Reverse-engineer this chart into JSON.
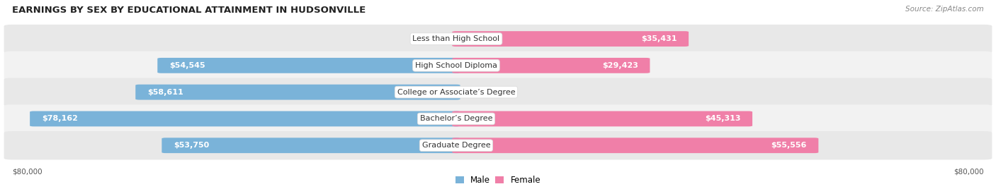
{
  "title": "EARNINGS BY SEX BY EDUCATIONAL ATTAINMENT IN HUDSONVILLE",
  "source": "Source: ZipAtlas.com",
  "categories": [
    "Less than High School",
    "High School Diploma",
    "College or Associate’s Degree",
    "Bachelor’s Degree",
    "Graduate Degree"
  ],
  "male_values": [
    0,
    54545,
    58611,
    78162,
    53750
  ],
  "female_values": [
    35431,
    29423,
    0,
    45313,
    55556
  ],
  "male_color": "#7ab3d9",
  "female_color": "#f07fa8",
  "female_color_light": "#f5b8cf",
  "male_label": "Male",
  "female_label": "Female",
  "max_value": 80000,
  "bg_color": "#ffffff",
  "row_bg_even": "#e8e8e8",
  "row_bg_odd": "#f2f2f2",
  "xlabel_left": "$80,000",
  "xlabel_right": "$80,000",
  "title_fontsize": 9.5,
  "source_fontsize": 7.5,
  "label_fontsize": 8.0,
  "value_fontsize": 8.0,
  "axis_fontsize": 7.5
}
